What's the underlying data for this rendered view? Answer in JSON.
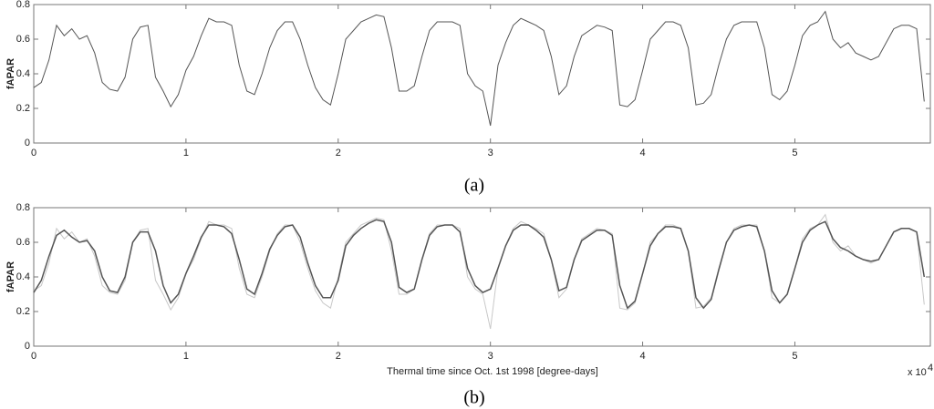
{
  "chart_data": [
    {
      "type": "line",
      "ylabel": "fAPAR",
      "caption": "(a)",
      "x": [
        0,
        0.05,
        0.1,
        0.15,
        0.2,
        0.25,
        0.3,
        0.35,
        0.4,
        0.45,
        0.5,
        0.55,
        0.6,
        0.65,
        0.7,
        0.75,
        0.8,
        0.85,
        0.9,
        0.95,
        1,
        1.05,
        1.1,
        1.15,
        1.2,
        1.25,
        1.3,
        1.35,
        1.4,
        1.45,
        1.5,
        1.55,
        1.6,
        1.65,
        1.7,
        1.75,
        1.8,
        1.85,
        1.9,
        1.95,
        2,
        2.05,
        2.1,
        2.15,
        2.2,
        2.25,
        2.3,
        2.35,
        2.4,
        2.45,
        2.5,
        2.55,
        2.6,
        2.65,
        2.7,
        2.75,
        2.8,
        2.85,
        2.9,
        2.95,
        3,
        3.05,
        3.1,
        3.15,
        3.2,
        3.25,
        3.3,
        3.35,
        3.4,
        3.45,
        3.5,
        3.55,
        3.6,
        3.65,
        3.7,
        3.75,
        3.8,
        3.85,
        3.9,
        3.95,
        4,
        4.05,
        4.1,
        4.15,
        4.2,
        4.25,
        4.3,
        4.35,
        4.4,
        4.45,
        4.5,
        4.55,
        4.6,
        4.65,
        4.7,
        4.75,
        4.8,
        4.85,
        4.9,
        4.95,
        5,
        5.05,
        5.1,
        5.15,
        5.2,
        5.25,
        5.3,
        5.35,
        5.4,
        5.45,
        5.5,
        5.55,
        5.6,
        5.65,
        5.7,
        5.75,
        5.8,
        5.85
      ],
      "xlim": [
        0,
        5.89
      ],
      "xticks": [
        0,
        1,
        2,
        3,
        4,
        5
      ],
      "ylim": [
        0,
        0.8
      ],
      "yticks": [
        0,
        0.2,
        0.4,
        0.6,
        0.8
      ],
      "series": [
        {
          "color": "#555555",
          "values": [
            0.32,
            0.35,
            0.48,
            0.68,
            0.62,
            0.66,
            0.6,
            0.62,
            0.52,
            0.35,
            0.31,
            0.3,
            0.38,
            0.6,
            0.67,
            0.68,
            0.38,
            0.3,
            0.21,
            0.28,
            0.42,
            0.5,
            0.62,
            0.72,
            0.7,
            0.7,
            0.68,
            0.45,
            0.3,
            0.28,
            0.4,
            0.55,
            0.65,
            0.7,
            0.7,
            0.6,
            0.45,
            0.32,
            0.25,
            0.22,
            0.4,
            0.6,
            0.65,
            0.7,
            0.72,
            0.74,
            0.73,
            0.55,
            0.3,
            0.3,
            0.33,
            0.5,
            0.65,
            0.7,
            0.7,
            0.7,
            0.68,
            0.4,
            0.33,
            0.3,
            0.1,
            0.45,
            0.58,
            0.68,
            0.72,
            0.7,
            0.68,
            0.65,
            0.5,
            0.28,
            0.33,
            0.5,
            0.62,
            0.65,
            0.68,
            0.67,
            0.65,
            0.22,
            0.21,
            0.25,
            0.42,
            0.6,
            0.65,
            0.7,
            0.7,
            0.68,
            0.55,
            0.22,
            0.23,
            0.28,
            0.45,
            0.6,
            0.68,
            0.7,
            0.7,
            0.7,
            0.55,
            0.28,
            0.25,
            0.3,
            0.45,
            0.62,
            0.68,
            0.7,
            0.76,
            0.6,
            0.55,
            0.58,
            0.52,
            0.5,
            0.48,
            0.5,
            0.58,
            0.66,
            0.68,
            0.68,
            0.66,
            0.24
          ]
        }
      ]
    },
    {
      "type": "line",
      "ylabel": "fAPAR",
      "caption": "(b)",
      "xlabel": "Thermal time since Oct. 1st 1998 [degree-days]",
      "multiplier": "x 10",
      "multiplier_exponent": "4",
      "x": [
        0,
        0.05,
        0.1,
        0.15,
        0.2,
        0.25,
        0.3,
        0.35,
        0.4,
        0.45,
        0.5,
        0.55,
        0.6,
        0.65,
        0.7,
        0.75,
        0.8,
        0.85,
        0.9,
        0.95,
        1,
        1.05,
        1.1,
        1.15,
        1.2,
        1.25,
        1.3,
        1.35,
        1.4,
        1.45,
        1.5,
        1.55,
        1.6,
        1.65,
        1.7,
        1.75,
        1.8,
        1.85,
        1.9,
        1.95,
        2,
        2.05,
        2.1,
        2.15,
        2.2,
        2.25,
        2.3,
        2.35,
        2.4,
        2.45,
        2.5,
        2.55,
        2.6,
        2.65,
        2.7,
        2.75,
        2.8,
        2.85,
        2.9,
        2.95,
        3,
        3.05,
        3.1,
        3.15,
        3.2,
        3.25,
        3.3,
        3.35,
        3.4,
        3.45,
        3.5,
        3.55,
        3.6,
        3.65,
        3.7,
        3.75,
        3.8,
        3.85,
        3.9,
        3.95,
        4,
        4.05,
        4.1,
        4.15,
        4.2,
        4.25,
        4.3,
        4.35,
        4.4,
        4.45,
        4.5,
        4.55,
        4.6,
        4.65,
        4.7,
        4.75,
        4.8,
        4.85,
        4.9,
        4.95,
        5,
        5.05,
        5.1,
        5.15,
        5.2,
        5.25,
        5.3,
        5.35,
        5.4,
        5.45,
        5.5,
        5.55,
        5.6,
        5.65,
        5.7,
        5.75,
        5.8,
        5.85
      ],
      "xlim": [
        0,
        5.89
      ],
      "xticks": [
        0,
        1,
        2,
        3,
        4,
        5
      ],
      "ylim": [
        0,
        0.8
      ],
      "yticks": [
        0,
        0.2,
        0.4,
        0.6,
        0.8
      ],
      "series": [
        {
          "color": "#c8c8c8",
          "values": [
            0.32,
            0.35,
            0.48,
            0.68,
            0.62,
            0.66,
            0.6,
            0.62,
            0.52,
            0.35,
            0.31,
            0.3,
            0.38,
            0.6,
            0.67,
            0.68,
            0.38,
            0.3,
            0.21,
            0.28,
            0.42,
            0.5,
            0.62,
            0.72,
            0.7,
            0.7,
            0.68,
            0.45,
            0.3,
            0.28,
            0.4,
            0.55,
            0.65,
            0.7,
            0.7,
            0.6,
            0.45,
            0.32,
            0.25,
            0.22,
            0.4,
            0.6,
            0.65,
            0.7,
            0.72,
            0.74,
            0.73,
            0.55,
            0.3,
            0.3,
            0.33,
            0.5,
            0.65,
            0.7,
            0.7,
            0.7,
            0.68,
            0.4,
            0.33,
            0.3,
            0.1,
            0.45,
            0.58,
            0.68,
            0.72,
            0.7,
            0.68,
            0.65,
            0.5,
            0.28,
            0.33,
            0.5,
            0.62,
            0.65,
            0.68,
            0.67,
            0.65,
            0.22,
            0.21,
            0.25,
            0.42,
            0.6,
            0.65,
            0.7,
            0.7,
            0.68,
            0.55,
            0.22,
            0.23,
            0.28,
            0.45,
            0.6,
            0.68,
            0.7,
            0.7,
            0.7,
            0.55,
            0.28,
            0.25,
            0.3,
            0.45,
            0.62,
            0.68,
            0.7,
            0.76,
            0.6,
            0.55,
            0.58,
            0.52,
            0.5,
            0.48,
            0.5,
            0.58,
            0.66,
            0.68,
            0.68,
            0.66,
            0.24
          ]
        },
        {
          "color": "#555555",
          "values": [
            0.31,
            0.38,
            0.52,
            0.64,
            0.67,
            0.63,
            0.6,
            0.61,
            0.55,
            0.4,
            0.32,
            0.31,
            0.4,
            0.6,
            0.66,
            0.66,
            0.55,
            0.35,
            0.25,
            0.3,
            0.42,
            0.52,
            0.63,
            0.7,
            0.7,
            0.69,
            0.65,
            0.5,
            0.33,
            0.3,
            0.42,
            0.56,
            0.64,
            0.69,
            0.7,
            0.63,
            0.48,
            0.35,
            0.28,
            0.28,
            0.38,
            0.58,
            0.64,
            0.68,
            0.71,
            0.73,
            0.72,
            0.6,
            0.34,
            0.31,
            0.33,
            0.5,
            0.64,
            0.69,
            0.7,
            0.7,
            0.66,
            0.45,
            0.35,
            0.31,
            0.33,
            0.45,
            0.58,
            0.67,
            0.7,
            0.7,
            0.67,
            0.63,
            0.5,
            0.32,
            0.34,
            0.5,
            0.61,
            0.64,
            0.67,
            0.67,
            0.64,
            0.35,
            0.22,
            0.26,
            0.42,
            0.58,
            0.65,
            0.69,
            0.69,
            0.68,
            0.55,
            0.28,
            0.22,
            0.27,
            0.44,
            0.6,
            0.67,
            0.69,
            0.7,
            0.69,
            0.55,
            0.32,
            0.25,
            0.3,
            0.45,
            0.6,
            0.67,
            0.7,
            0.72,
            0.62,
            0.57,
            0.55,
            0.52,
            0.5,
            0.49,
            0.5,
            0.58,
            0.66,
            0.68,
            0.68,
            0.66,
            0.4
          ]
        }
      ]
    }
  ]
}
